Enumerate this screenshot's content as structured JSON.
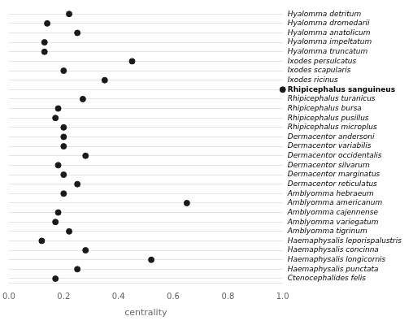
{
  "chart_data": {
    "type": "dot",
    "xlabel": "centrality",
    "categories": [
      "Hyalomma detritum",
      "Hyalomma dromedarii",
      "Hyalomma anatolicum",
      "Hyalomma impeltatum",
      "Hyalomma truncatum",
      "Ixodes persulcatus",
      "Ixodes scapularis",
      "Ixodes ricinus",
      "Rhipicephalus sanguineus",
      "Rhipicephalus turanicus",
      "Rhipicephalus bursa",
      "Rhipicephalus pusillus",
      "Rhipicephalus microplus",
      "Dermacentor andersoni",
      "Dermacentor variabilis",
      "Dermacentor occidentalis",
      "Dermacentor silvarum",
      "Dermacentor marginatus",
      "Dermacentor reticulatus",
      "Amblyomma hebraeum",
      "Amblyomma americanum",
      "Amblyomma cajennense",
      "Amblyomma variegatum",
      "Amblyomma tigrinum",
      "Haemaphysalis leporispalustris",
      "Haemaphysalis concinna",
      "Haemaphysalis longicornis",
      "Haemaphysalis punctata",
      "Ctenocephalides felis"
    ],
    "values": [
      0.22,
      0.14,
      0.25,
      0.13,
      0.13,
      0.45,
      0.2,
      0.35,
      1.0,
      0.27,
      0.18,
      0.17,
      0.2,
      0.2,
      0.2,
      0.28,
      0.18,
      0.2,
      0.25,
      0.2,
      0.65,
      0.18,
      0.17,
      0.22,
      0.12,
      0.28,
      0.52,
      0.25,
      0.17
    ],
    "bold_categories": [
      "Rhipicephalus sanguineus"
    ],
    "color": "#1a1a1a",
    "xlim": [
      0.0,
      1.0
    ],
    "xticks": [
      {
        "value": 0.0,
        "label": "0.0"
      },
      0.2,
      0.4,
      0.6,
      0.8,
      {
        "value": 1.0,
        "label": "1.0"
      }
    ],
    "grid": true
  }
}
